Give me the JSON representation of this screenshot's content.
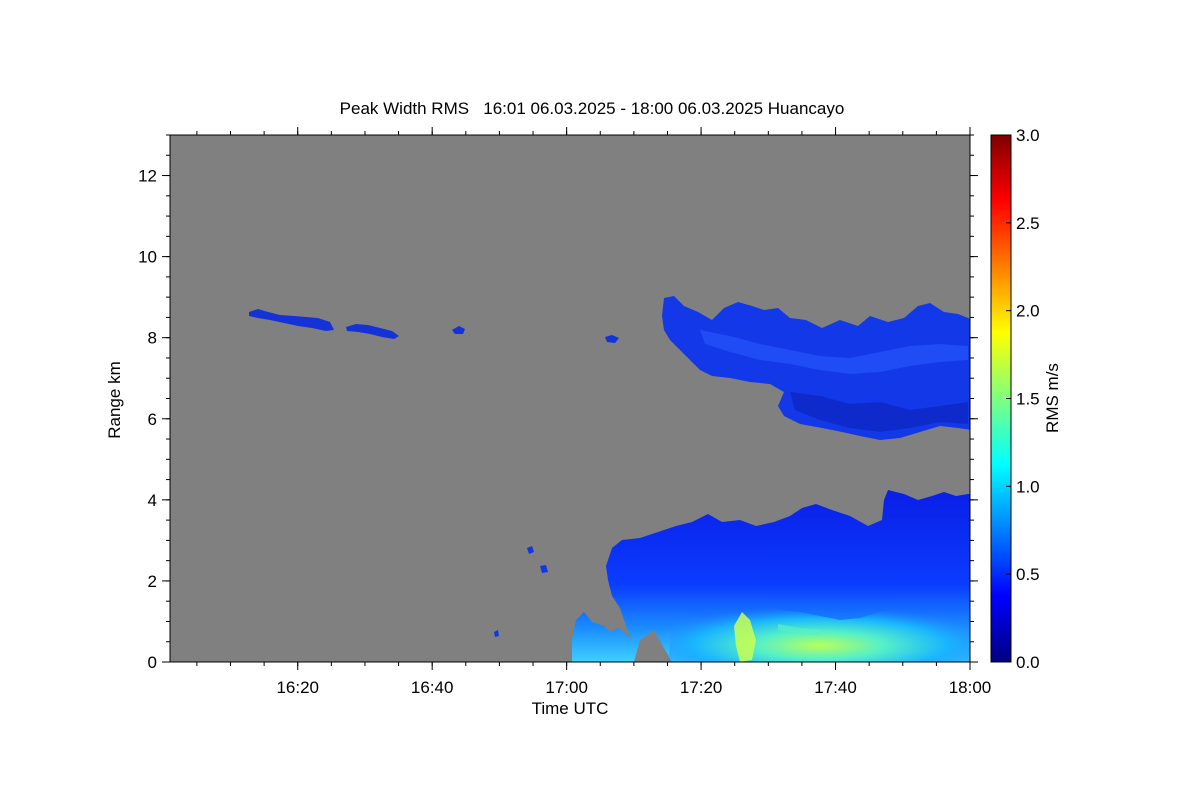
{
  "chart_data": {
    "type": "heatmap",
    "title": "Peak Width RMS   16:01 06.03.2025 - 18:00 06.03.2025 Huancayo",
    "xlabel": "Time UTC",
    "ylabel": "Range km",
    "xlim": [
      "16:01",
      "18:00"
    ],
    "ylim": [
      0,
      13
    ],
    "xticks": [
      "16:20",
      "16:40",
      "17:00",
      "17:20",
      "17:40",
      "18:00"
    ],
    "yticks": [
      0,
      2,
      4,
      6,
      8,
      10,
      12
    ],
    "background_color": "#808080",
    "colorbar": {
      "label": "RMS m/s",
      "range": [
        0.0,
        3.0
      ],
      "ticks": [
        "0.0",
        "0.5",
        "1.0",
        "1.5",
        "2.0",
        "2.5",
        "3.0"
      ],
      "colormap": [
        "#00007f",
        "#0000ff",
        "#007fff",
        "#00ffff",
        "#7fff7f",
        "#ffff00",
        "#ff7f00",
        "#ff0000",
        "#7f0000"
      ]
    },
    "regions": [
      {
        "name": "thin cloud streak 1",
        "time_start": "16:13",
        "time_end": "16:27",
        "range_min": 8.1,
        "range_max": 8.7,
        "rms": 0.2
      },
      {
        "name": "thin cloud streak 2",
        "time_start": "16:26",
        "time_end": "16:35",
        "range_min": 8.0,
        "range_max": 8.4,
        "rms": 0.2
      },
      {
        "name": "thin cloud streak 3",
        "time_start": "16:44",
        "time_end": "16:45",
        "range_min": 8.1,
        "range_max": 8.3,
        "rms": 0.2
      },
      {
        "name": "thin cloud streak 4",
        "time_start": "17:12",
        "time_end": "17:13",
        "range_min": 7.9,
        "range_max": 8.1,
        "rms": 0.2
      },
      {
        "name": "upper cloud layer",
        "time_start": "17:15",
        "time_end": "18:00",
        "range_min": 5.5,
        "range_max": 9.1,
        "rms": 0.25
      },
      {
        "name": "boundary layer",
        "time_start": "17:02",
        "time_end": "18:00",
        "range_min": 0.0,
        "range_max": 4.3,
        "rms": 0.5
      },
      {
        "name": "boundary layer core",
        "time_start": "17:18",
        "time_end": "17:45",
        "range_min": 0.0,
        "range_max": 1.5,
        "rms": 1.0
      }
    ]
  }
}
